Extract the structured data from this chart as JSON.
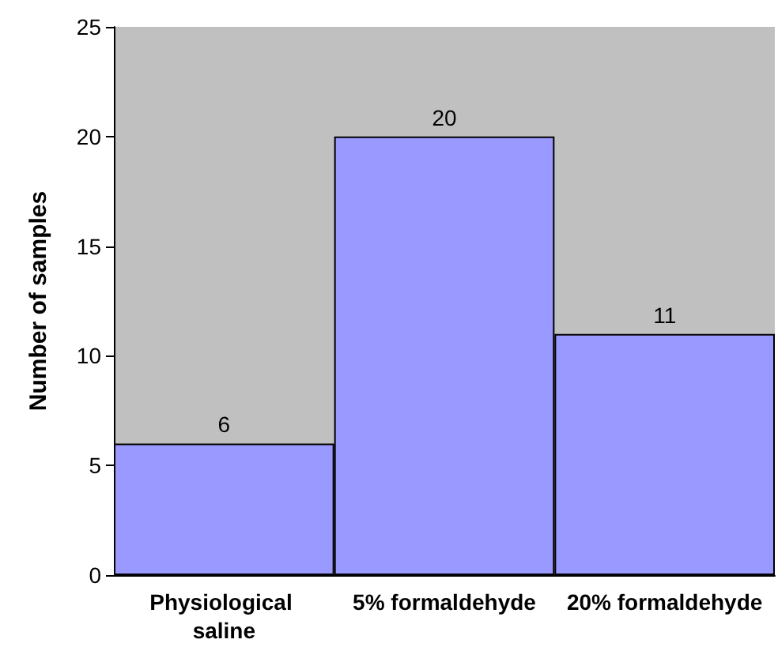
{
  "chart_data": {
    "type": "bar",
    "ylabel": "Number of samples",
    "categories": [
      "Physiological saline",
      "5% formaldehyde",
      "20% formaldehyde"
    ],
    "values": [
      6,
      20,
      11
    ],
    "color": "#9999ff",
    "ylim": [
      0,
      25
    ],
    "yticks": [
      0,
      5,
      10,
      15,
      20,
      25
    ],
    "grid": false,
    "data_labels": true
  }
}
